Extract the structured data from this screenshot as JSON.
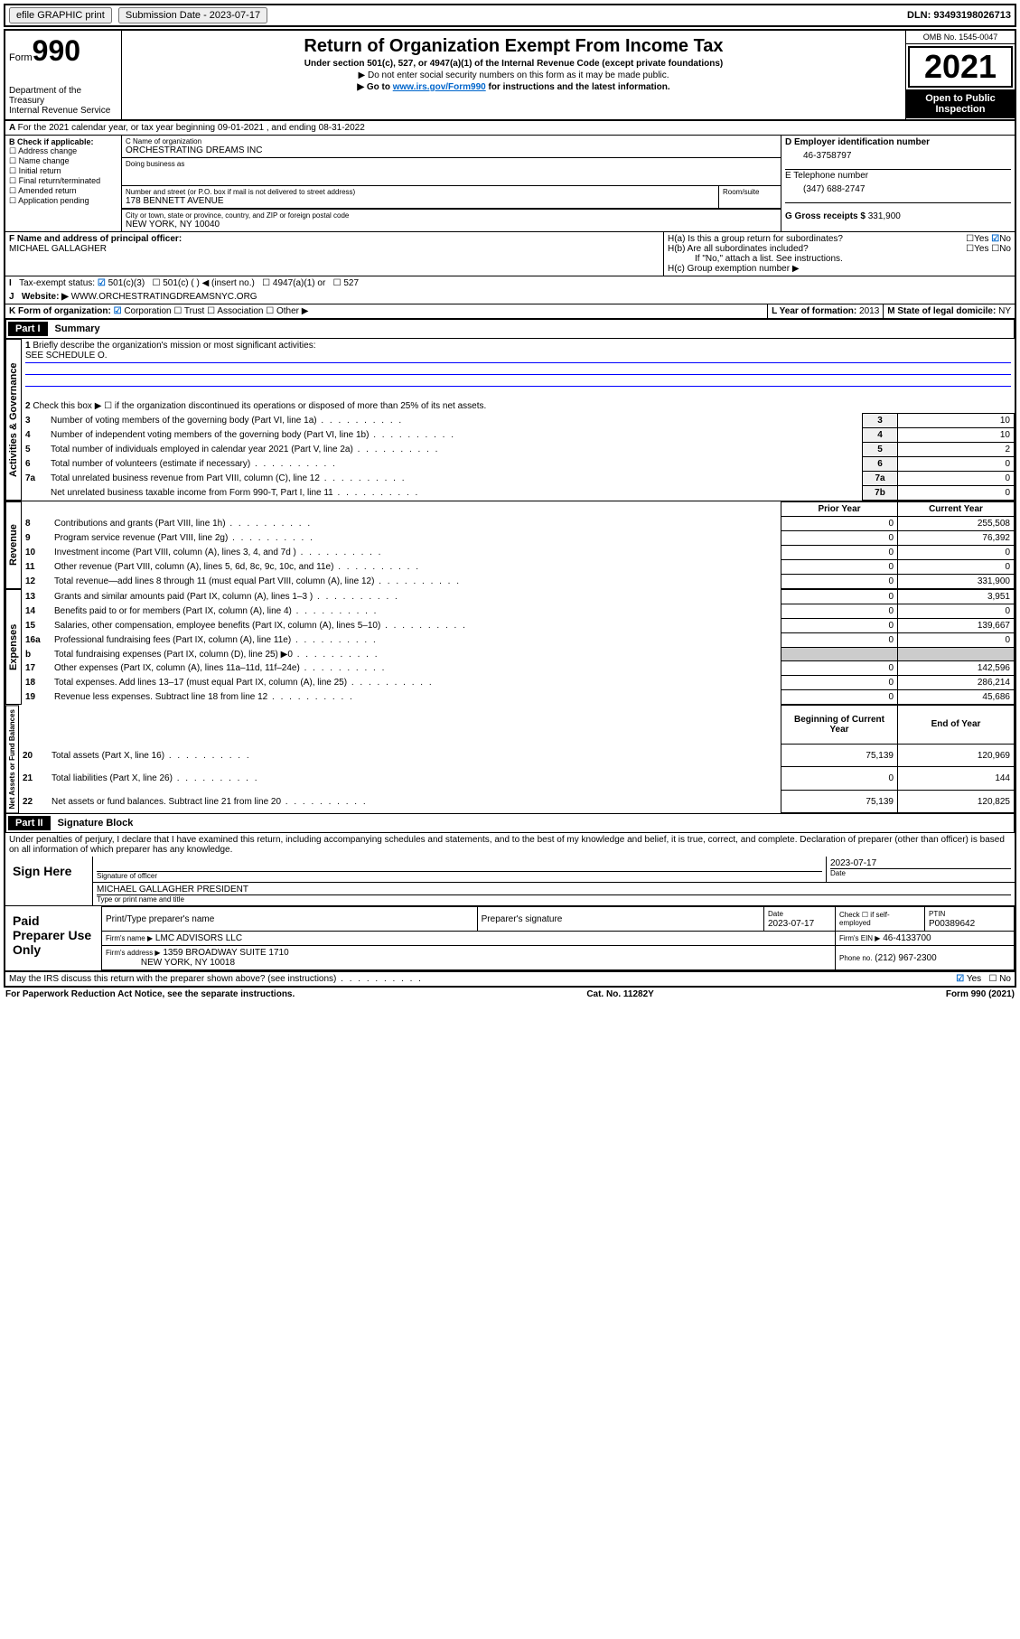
{
  "header": {
    "efile": "efile GRAPHIC print",
    "sub_date_lbl": "Submission Date - 2023-07-17",
    "dln": "DLN: 93493198026713"
  },
  "form": {
    "form_word": "Form",
    "num": "990",
    "dept": "Department of the Treasury",
    "irs": "Internal Revenue Service"
  },
  "title": {
    "main": "Return of Organization Exempt From Income Tax",
    "sub1": "Under section 501(c), 527, or 4947(a)(1) of the Internal Revenue Code (except private foundations)",
    "sub2": "▶ Do not enter social security numbers on this form as it may be made public.",
    "sub3_pre": "▶ Go to ",
    "sub3_link": "www.irs.gov/Form990",
    "sub3_post": " for instructions and the latest information."
  },
  "yearbox": {
    "omb": "OMB No. 1545-0047",
    "year": "2021",
    "inspect": "Open to Public Inspection"
  },
  "line_a": "For the 2021 calendar year, or tax year beginning 09-01-2021  , and ending 08-31-2022",
  "b": {
    "hdr": "B Check if applicable:",
    "opts": [
      "Address change",
      "Name change",
      "Initial return",
      "Final return/terminated",
      "Amended return",
      "Application pending"
    ]
  },
  "c": {
    "name_lbl": "C Name of organization",
    "name": "ORCHESTRATING DREAMS INC",
    "dba_lbl": "Doing business as",
    "street_lbl": "Number and street (or P.O. box if mail is not delivered to street address)",
    "room_lbl": "Room/suite",
    "street": "178 BENNETT AVENUE",
    "city_lbl": "City or town, state or province, country, and ZIP or foreign postal code",
    "city": "NEW YORK, NY  10040"
  },
  "d": {
    "lbl": "D Employer identification number",
    "val": "46-3758797"
  },
  "e": {
    "lbl": "E Telephone number",
    "val": "(347) 688-2747"
  },
  "g": {
    "lbl": "G Gross receipts $",
    "val": "331,900"
  },
  "f": {
    "lbl": "F Name and address of principal officer:",
    "val": "MICHAEL GALLAGHER"
  },
  "h": {
    "a": "H(a)  Is this a group return for subordinates?",
    "b": "H(b)  Are all subordinates included?",
    "yes": "Yes",
    "no": "No",
    "note": "If \"No,\" attach a list. See instructions.",
    "c": "H(c)  Group exemption number ▶"
  },
  "i": {
    "lbl": "Tax-exempt status:",
    "o1": "501(c)(3)",
    "o2": "501(c) (  ) ◀ (insert no.)",
    "o3": "4947(a)(1) or",
    "o4": "527"
  },
  "j": {
    "lbl": "Website: ▶",
    "val": "WWW.ORCHESTRATINGDREAMSNYC.ORG"
  },
  "k": {
    "lbl": "K Form of organization:",
    "o1": "Corporation",
    "o2": "Trust",
    "o3": "Association",
    "o4": "Other ▶"
  },
  "l": {
    "lbl": "L Year of formation:",
    "val": "2013"
  },
  "m": {
    "lbl": "M State of legal domicile:",
    "val": "NY"
  },
  "part1": {
    "hdr": "Part I",
    "title": "Summary"
  },
  "gov": {
    "label": "Activities & Governance",
    "l1": "Briefly describe the organization's mission or most significant activities:",
    "l1v": "SEE SCHEDULE O.",
    "l2": "Check this box ▶ ☐  if the organization discontinued its operations or disposed of more than 25% of its net assets.",
    "rows": [
      {
        "n": "3",
        "t": "Number of voting members of the governing body (Part VI, line 1a)",
        "b": "3",
        "v": "10"
      },
      {
        "n": "4",
        "t": "Number of independent voting members of the governing body (Part VI, line 1b)",
        "b": "4",
        "v": "10"
      },
      {
        "n": "5",
        "t": "Total number of individuals employed in calendar year 2021 (Part V, line 2a)",
        "b": "5",
        "v": "2"
      },
      {
        "n": "6",
        "t": "Total number of volunteers (estimate if necessary)",
        "b": "6",
        "v": "0"
      },
      {
        "n": "7a",
        "t": "Total unrelated business revenue from Part VIII, column (C), line 12",
        "b": "7a",
        "v": "0"
      },
      {
        "n": "",
        "t": "Net unrelated business taxable income from Form 990-T, Part I, line 11",
        "b": "7b",
        "v": "0"
      }
    ]
  },
  "rev": {
    "label": "Revenue",
    "hdr1": "Prior Year",
    "hdr2": "Current Year",
    "rows": [
      {
        "n": "8",
        "t": "Contributions and grants (Part VIII, line 1h)",
        "p": "0",
        "c": "255,508"
      },
      {
        "n": "9",
        "t": "Program service revenue (Part VIII, line 2g)",
        "p": "0",
        "c": "76,392"
      },
      {
        "n": "10",
        "t": "Investment income (Part VIII, column (A), lines 3, 4, and 7d )",
        "p": "0",
        "c": "0"
      },
      {
        "n": "11",
        "t": "Other revenue (Part VIII, column (A), lines 5, 6d, 8c, 9c, 10c, and 11e)",
        "p": "0",
        "c": "0"
      },
      {
        "n": "12",
        "t": "Total revenue—add lines 8 through 11 (must equal Part VIII, column (A), line 12)",
        "p": "0",
        "c": "331,900"
      }
    ]
  },
  "exp": {
    "label": "Expenses",
    "rows": [
      {
        "n": "13",
        "t": "Grants and similar amounts paid (Part IX, column (A), lines 1–3 )",
        "p": "0",
        "c": "3,951"
      },
      {
        "n": "14",
        "t": "Benefits paid to or for members (Part IX, column (A), line 4)",
        "p": "0",
        "c": "0"
      },
      {
        "n": "15",
        "t": "Salaries, other compensation, employee benefits (Part IX, column (A), lines 5–10)",
        "p": "0",
        "c": "139,667"
      },
      {
        "n": "16a",
        "t": "Professional fundraising fees (Part IX, column (A), line 11e)",
        "p": "0",
        "c": "0"
      },
      {
        "n": "b",
        "t": "Total fundraising expenses (Part IX, column (D), line 25) ▶0",
        "p": "",
        "c": ""
      },
      {
        "n": "17",
        "t": "Other expenses (Part IX, column (A), lines 11a–11d, 11f–24e)",
        "p": "0",
        "c": "142,596"
      },
      {
        "n": "18",
        "t": "Total expenses. Add lines 13–17 (must equal Part IX, column (A), line 25)",
        "p": "0",
        "c": "286,214"
      },
      {
        "n": "19",
        "t": "Revenue less expenses. Subtract line 18 from line 12",
        "p": "0",
        "c": "45,686"
      }
    ]
  },
  "net": {
    "label": "Net Assets or Fund Balances",
    "hdr1": "Beginning of Current Year",
    "hdr2": "End of Year",
    "rows": [
      {
        "n": "20",
        "t": "Total assets (Part X, line 16)",
        "p": "75,139",
        "c": "120,969"
      },
      {
        "n": "21",
        "t": "Total liabilities (Part X, line 26)",
        "p": "0",
        "c": "144"
      },
      {
        "n": "22",
        "t": "Net assets or fund balances. Subtract line 21 from line 20",
        "p": "75,139",
        "c": "120,825"
      }
    ]
  },
  "part2": {
    "hdr": "Part II",
    "title": "Signature Block"
  },
  "perjury": "Under penalties of perjury, I declare that I have examined this return, including accompanying schedules and statements, and to the best of my knowledge and belief, it is true, correct, and complete. Declaration of preparer (other than officer) is based on all information of which preparer has any knowledge.",
  "sign": {
    "here": "Sign Here",
    "sig_lbl": "Signature of officer",
    "date_lbl": "Date",
    "date": "2023-07-17",
    "name": "MICHAEL GALLAGHER  PRESIDENT",
    "name_lbl": "Type or print name and title"
  },
  "paid": {
    "lbl": "Paid Preparer Use Only",
    "h1": "Print/Type preparer's name",
    "h2": "Preparer's signature",
    "h3": "Date",
    "h4": "Check ☐ if self-employed",
    "h5": "PTIN",
    "date": "2023-07-17",
    "ptin": "P00389642",
    "firm_lbl": "Firm's name   ▶",
    "firm": "LMC ADVISORS LLC",
    "ein_lbl": "Firm's EIN ▶",
    "ein": "46-4133700",
    "addr_lbl": "Firm's address ▶",
    "addr": "1359 BROADWAY SUITE 1710",
    "city": "NEW YORK, NY  10018",
    "phone_lbl": "Phone no.",
    "phone": "(212) 967-2300"
  },
  "discuss": "May the IRS discuss this return with the preparer shown above? (see instructions)",
  "footer": {
    "l": "For Paperwork Reduction Act Notice, see the separate instructions.",
    "m": "Cat. No. 11282Y",
    "r": "Form 990 (2021)"
  }
}
